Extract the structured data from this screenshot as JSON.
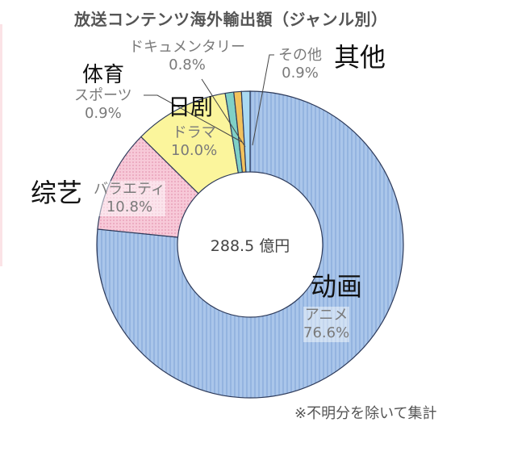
{
  "chart_data": {
    "type": "pie",
    "variant": "donut",
    "title": "放送コンテンツ海外輸出額（ジャンル別）",
    "center_label": "288.5 億円",
    "note": "※不明分を除いて集計",
    "unit": "%",
    "slices": [
      {
        "label": "アニメ",
        "value": 76.6,
        "value_label": "76.6%",
        "translation": "动画",
        "color": "#aac6ea"
      },
      {
        "label": "バラエティ",
        "value": 10.8,
        "value_label": "10.8%",
        "translation": "综艺",
        "color": "#f7c9d8"
      },
      {
        "label": "ドラマ",
        "value": 10.0,
        "value_label": "10.0%",
        "translation": "日剧",
        "color": "#fbf59c"
      },
      {
        "label": "スポーツ",
        "value": 0.9,
        "value_label": "0.9%",
        "translation": "体育",
        "color": "#7fd0c6"
      },
      {
        "label": "ドキュメンタリー",
        "value": 0.8,
        "value_label": "0.8%",
        "translation": "",
        "color": "#f2c25c"
      },
      {
        "label": "その他",
        "value": 0.9,
        "value_label": "0.9%",
        "translation": "其他",
        "color": "#a9d9f2"
      }
    ],
    "start": "12 o'clock",
    "direction": "clockwise"
  }
}
